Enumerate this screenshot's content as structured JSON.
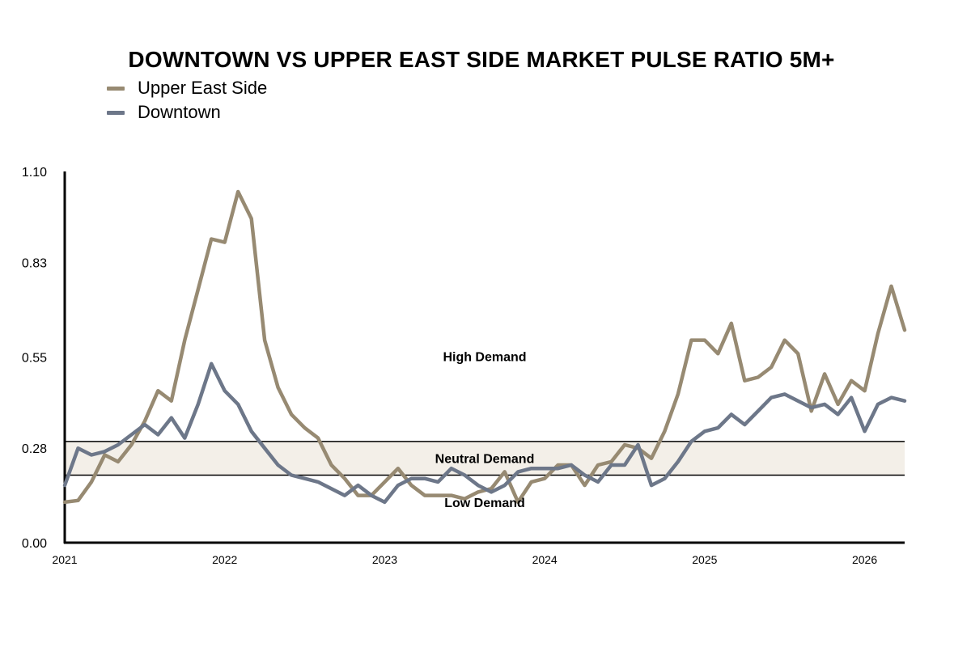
{
  "chart_data": {
    "type": "line",
    "title": "DOWNTOWN VS UPPER EAST SIDE MARKET PULSE RATIO 5M+",
    "xlabel": "",
    "ylabel": "",
    "ylim": [
      0,
      1.1
    ],
    "xlim": [
      "2021-01",
      "2026-04"
    ],
    "yticks": [
      "0.00",
      "0.28",
      "0.55",
      "0.83",
      "1.10"
    ],
    "xticks": [
      "2021",
      "2022",
      "2023",
      "2024",
      "2025",
      "2026"
    ],
    "grid": false,
    "legend": "top-left",
    "zones": [
      {
        "label": "High Demand",
        "from": 0.3,
        "to": 1.1
      },
      {
        "label": "Neutral Demand",
        "from": 0.2,
        "to": 0.3
      },
      {
        "label": "Low Demand",
        "from": 0.0,
        "to": 0.2
      }
    ],
    "x": [
      "2021-01",
      "2021-02",
      "2021-03",
      "2021-04",
      "2021-05",
      "2021-06",
      "2021-07",
      "2021-08",
      "2021-09",
      "2021-10",
      "2021-11",
      "2021-12",
      "2022-01",
      "2022-02",
      "2022-03",
      "2022-04",
      "2022-05",
      "2022-06",
      "2022-07",
      "2022-08",
      "2022-09",
      "2022-10",
      "2022-11",
      "2022-12",
      "2023-01",
      "2023-02",
      "2023-03",
      "2023-04",
      "2023-05",
      "2023-06",
      "2023-07",
      "2023-08",
      "2023-09",
      "2023-10",
      "2023-11",
      "2023-12",
      "2024-01",
      "2024-02",
      "2024-03",
      "2024-04",
      "2024-05",
      "2024-06",
      "2024-07",
      "2024-08",
      "2024-09",
      "2024-10",
      "2024-11",
      "2024-12",
      "2025-01",
      "2025-02",
      "2025-03",
      "2025-04",
      "2025-05",
      "2025-06",
      "2025-07",
      "2025-08",
      "2025-09",
      "2025-10",
      "2025-11",
      "2025-12",
      "2026-01",
      "2026-02",
      "2026-03",
      "2026-04"
    ],
    "series": [
      {
        "name": "Upper East Side",
        "color": "#978a72",
        "values": [
          0.12,
          0.125,
          0.18,
          0.26,
          0.24,
          0.29,
          0.36,
          0.45,
          0.42,
          0.6,
          0.75,
          0.9,
          0.89,
          1.04,
          0.96,
          0.6,
          0.46,
          0.38,
          0.34,
          0.31,
          0.23,
          0.19,
          0.14,
          0.14,
          0.18,
          0.22,
          0.17,
          0.14,
          0.14,
          0.14,
          0.13,
          0.15,
          0.16,
          0.21,
          0.12,
          0.18,
          0.19,
          0.23,
          0.23,
          0.17,
          0.23,
          0.24,
          0.29,
          0.28,
          0.25,
          0.33,
          0.44,
          0.6,
          0.6,
          0.56,
          0.65,
          0.48,
          0.49,
          0.52,
          0.6,
          0.56,
          0.39,
          0.5,
          0.41,
          0.48,
          0.45,
          0.62,
          0.76,
          0.63
        ]
      },
      {
        "name": "Downtown",
        "color": "#6d7789",
        "values": [
          0.17,
          0.28,
          0.26,
          0.27,
          0.29,
          0.32,
          0.35,
          0.32,
          0.37,
          0.31,
          0.41,
          0.53,
          0.45,
          0.41,
          0.33,
          0.28,
          0.23,
          0.2,
          0.19,
          0.18,
          0.16,
          0.14,
          0.17,
          0.14,
          0.12,
          0.17,
          0.19,
          0.19,
          0.18,
          0.22,
          0.2,
          0.17,
          0.15,
          0.17,
          0.21,
          0.22,
          0.22,
          0.22,
          0.23,
          0.2,
          0.18,
          0.23,
          0.23,
          0.29,
          0.17,
          0.19,
          0.24,
          0.3,
          0.33,
          0.34,
          0.38,
          0.35,
          0.39,
          0.43,
          0.44,
          0.42,
          0.4,
          0.41,
          0.38,
          0.43,
          0.33,
          0.41,
          0.43,
          0.42
        ]
      }
    ]
  }
}
